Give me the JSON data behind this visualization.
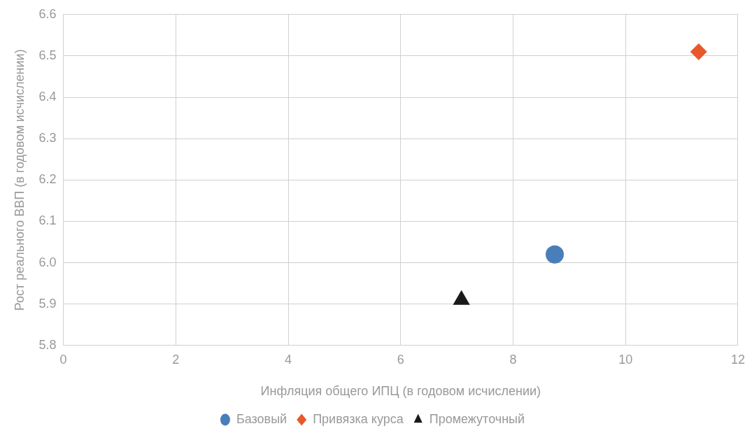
{
  "chart_data": {
    "type": "scatter",
    "xlabel": "Инфляция общего ИПЦ (в годовом исчислении)",
    "ylabel": "Рост реального ВВП (в годовом исчислении)",
    "xlim": [
      0,
      12
    ],
    "xticks": [
      0,
      2,
      4,
      6,
      8,
      10,
      12
    ],
    "ylim": [
      5.8,
      6.6
    ],
    "yticks": [
      {
        "value": 5.8,
        "label": "5.8"
      },
      {
        "value": 5.9,
        "label": "5.9"
      },
      {
        "value": 6.0,
        "label": "6.0"
      },
      {
        "value": 6.1,
        "label": "6.1"
      },
      {
        "value": 6.2,
        "label": "6.2"
      },
      {
        "value": 6.3,
        "label": "6.3"
      },
      {
        "value": 6.4,
        "label": "6.4"
      },
      {
        "value": 6.5,
        "label": "6.5"
      },
      {
        "value": 6.6,
        "label": "6.6"
      }
    ],
    "grid": true,
    "legend": "bottom",
    "series": [
      {
        "name": "Базовый",
        "color": "#4a7ebb",
        "marker": "circle",
        "x": [
          8.74
        ],
        "values": [
          6.02
        ]
      },
      {
        "name": "Привязка курса",
        "color": "#e8582a",
        "marker": "diamond",
        "x": [
          11.3
        ],
        "values": [
          6.51
        ]
      },
      {
        "name": "Промежуточный",
        "color": "#1a1a1a",
        "marker": "triangle",
        "x": [
          7.08
        ],
        "values": [
          5.91
        ]
      }
    ]
  }
}
